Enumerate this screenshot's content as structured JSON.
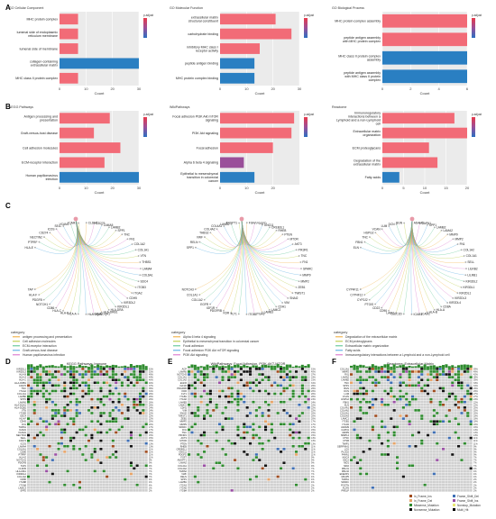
{
  "panels": {
    "A": "A",
    "B": "B",
    "C": "C",
    "D": "D",
    "E": "E",
    "F": "F"
  },
  "chart_data": [
    {
      "type": "bar",
      "panel": "A",
      "title": "GO Cellular Component",
      "xlabel": "Count",
      "xlim": [
        0,
        30
      ],
      "xticks": [
        0,
        10,
        20,
        30
      ],
      "categories": [
        "MHC protein complex",
        "lumenal side of endoplasmic reticulum membrane",
        "lumenal side of membrane",
        "collagen-containing extracellular matrix",
        "MHC class II protein complex"
      ],
      "values": [
        7,
        7,
        7,
        33,
        7
      ],
      "colors": [
        "#f26b77",
        "#f26b77",
        "#f26b77",
        "#2a7fc2",
        "#f26b77"
      ],
      "legend_title": "p.adjust"
    },
    {
      "type": "bar",
      "panel": "A2",
      "title": "GO Molecular Function",
      "xlabel": "Count",
      "xlim": [
        0,
        30
      ],
      "xticks": [
        0,
        10,
        20,
        30
      ],
      "categories": [
        "extracellular matrix structural constituent",
        "carbohydrate binding",
        "inhibitory MHC class I receptor activity",
        "peptide antigen binding",
        "MHC protein complex binding"
      ],
      "values": [
        21,
        27,
        15,
        13,
        13
      ],
      "colors": [
        "#f26b77",
        "#f26b77",
        "#f26b77",
        "#2a7fc2",
        "#2a7fc2"
      ],
      "legend_title": "p.adjust"
    },
    {
      "type": "bar",
      "panel": "A3",
      "title": "GO Biological Process",
      "xlabel": "Count",
      "xlim": [
        0,
        6
      ],
      "xticks": [
        0,
        2,
        4,
        6
      ],
      "categories": [
        "MHC protein complex assembly",
        "peptide antigen assembly with MHC protein complex",
        "MHC class II protein complex assembly",
        "peptide antigen assembly with MHC class II protein complex"
      ],
      "values": [
        6.3,
        6.3,
        6.3,
        6.3
      ],
      "colors": [
        "#f26b77",
        "#f26b77",
        "#2a7fc2",
        "#2a7fc2"
      ],
      "legend_title": "p.adjust"
    },
    {
      "type": "bar",
      "panel": "B",
      "title": "KEGG Pathways",
      "xlabel": "Count",
      "xlim": [
        0,
        30
      ],
      "xticks": [
        0,
        10,
        20,
        30
      ],
      "categories": [
        "Antigen processing and presentation",
        "Graft-versus-host disease",
        "Cell adhesion molecules",
        "ECM-receptor interaction",
        "Human papillomavirus infection"
      ],
      "values": [
        19,
        13,
        23,
        17,
        33
      ],
      "colors": [
        "#f26b77",
        "#f26b77",
        "#f26b77",
        "#f26b77",
        "#2a7fc2"
      ],
      "legend_title": "p.adjust"
    },
    {
      "type": "bar",
      "panel": "B2",
      "title": "WikiPathways",
      "xlabel": "Count",
      "xlim": [
        0,
        30
      ],
      "xticks": [
        0,
        10,
        20
      ],
      "categories": [
        "Focal adhesion PI3K Akt mTOR signaling",
        "PI3K Akt signaling",
        "Focal adhesion",
        "Alpha 6 beta 4 signaling",
        "Epithelial to mesenchymal transition in colorectal cancer"
      ],
      "values": [
        28,
        27,
        20,
        9,
        13
      ],
      "colors": [
        "#f26b77",
        "#f26b77",
        "#f26b77",
        "#9a4f9a",
        "#2a7fc2"
      ],
      "legend_title": "p.adjust"
    },
    {
      "type": "bar",
      "panel": "B3",
      "title": "Reactome",
      "xlabel": "Count",
      "xlim": [
        0,
        20
      ],
      "xticks": [
        0,
        5,
        10,
        15,
        20
      ],
      "categories": [
        "Immunoregulatory interactions between a Lymphoid and a non-Lymphoid cell",
        "Extracellular matrix organization",
        "ECM proteoglycans",
        "Degradation of the extracellular matrix",
        "Fatty acids"
      ],
      "values": [
        17,
        20,
        11,
        13,
        4
      ],
      "colors": [
        "#f26b77",
        "#f26b77",
        "#f26b77",
        "#f26b77",
        "#2a7fc2"
      ],
      "legend_title": "p.adjust"
    }
  ],
  "cnet": {
    "category_label": "category",
    "left": {
      "genes": [
        "TAP",
        "HLA-F",
        "PDGFB",
        "NOTCH1",
        "CD86",
        "HLA-C",
        "HLA-B",
        "HLA-A",
        "HLA-DQB1",
        "HLA-DQA1",
        "HLA-DRB1",
        "HLA-DRA",
        "KIR2DL1",
        "KIR3DL2",
        "CDH5",
        "ITGA2",
        "ITGB3",
        "SDC4",
        "COL6A1",
        "LAMA4",
        "THBS1",
        "VTN",
        "COL1A1",
        "COL1A2",
        "FN1",
        "TNC",
        "SPP1",
        "LAMB2",
        "LAMA5",
        "CD276",
        "CLDN5",
        "ICAM1",
        "VCAM1",
        "SELL",
        "ICOS",
        "CD274",
        "NECTIN2",
        "PTPRF",
        "HLA-E"
      ],
      "legend": [
        "antigen processing and presentation",
        "Cell adhesion molecules",
        "ECM-receptor interaction",
        "Graft-versus-host disease",
        "Human papillomavirus infection"
      ],
      "legend_colors": [
        "#f0a830",
        "#b4c836",
        "#4ec08a",
        "#4aa6e0",
        "#d766c8"
      ]
    },
    "mid": {
      "genes": [
        "NOTCH3",
        "COL1A1",
        "COL1A2",
        "EGFR",
        "IGF1R",
        "PDGFRB",
        "KDR",
        "FLT1",
        "ITGB1",
        "ITGA6",
        "LAMB3",
        "LAMC2",
        "CDH1",
        "VIM",
        "SNAI2",
        "TWIST1",
        "ZEB1",
        "MMP2",
        "MMP9",
        "SPARC",
        "FN1",
        "TNC",
        "PIK3R1",
        "AKT3",
        "MTOR",
        "PTEN",
        "RHEB",
        "CREB3L1",
        "GNG11",
        "PDGFD",
        "FGF7",
        "ANGPT1",
        "LAMA2",
        "COL4A1",
        "COL4A2",
        "THBS2",
        "VWF",
        "RELN",
        "SPP1"
      ],
      "legend": [
        "Alpha 6 beta 4 signaling",
        "Epithelial to mesenchymal transition in colorectal cancer",
        "Focal adhesion",
        "Focal adhesion PI3K Akt mTOR signaling",
        "PI3K Akt signaling"
      ],
      "legend_colors": [
        "#f0a830",
        "#b4c836",
        "#4ec08a",
        "#4aa6e0",
        "#d766c8"
      ]
    },
    "right": {
      "genes": [
        "CYP4F11",
        "CYP4F12",
        "CYP2J2",
        "PTGIS",
        "CD22",
        "CD96",
        "LAIR1",
        "CLEC2D",
        "ICAM1",
        "ICAM2",
        "HLA-B",
        "HLA-A",
        "CD8A",
        "KIR2DL4",
        "KIR2DL3",
        "KIR2DL1",
        "KIR3DL1",
        "KIR3DL2",
        "LILRB1",
        "LILRB2",
        "SELL",
        "COL1A1",
        "COL1A2",
        "FN1",
        "MMP2",
        "MMP9",
        "LAMA2",
        "LAMB2",
        "SPP1",
        "CAPN1",
        "ADAM9",
        "BGN",
        "DCN",
        "LUM",
        "VCAN",
        "HSPG2",
        "TNC",
        "FBN1",
        "ELN"
      ],
      "legend": [
        "Degradation of the extracellular matrix",
        "ECM proteoglycans",
        "Extracellular matrix organization",
        "Fatty acids",
        "Immunoregulatory interactions between a Lymphoid and a non-Lymphoid cell"
      ],
      "legend_colors": [
        "#f0a830",
        "#b4c836",
        "#4ec08a",
        "#4aa6e0",
        "#d766c8"
      ]
    }
  },
  "oncoprints": [
    {
      "title": "KEGG Pathways: Immune",
      "rows": [
        "KIR2DL1",
        "KIR2DL3",
        "HLA-B",
        "HLA-A",
        "HLA-C",
        "HLA-DRB1",
        "CD276",
        "TNC",
        "ITGA2",
        "COL1A1",
        "LAMB2",
        "SPP1",
        "LAMA5",
        "HLA-DQA1",
        "HLA-DQB1",
        "VTN",
        "ITGB3",
        "SDC4",
        "HLA-F",
        "CDH5",
        "FN1",
        "THBS1",
        "ICAM1",
        "VCAM1",
        "NECTIN2",
        "SELL",
        "CD274",
        "ICOS",
        "LAMA4",
        "COL6A1",
        "CD86",
        "PTPRF",
        "HLA-E",
        "NOTCH1",
        "PDGFB",
        "TAP1",
        "CLDN5",
        "HLA-DRA",
        "KIR3DL2",
        "COL1A2",
        "CD80",
        "ITGB8",
        "ITGA8",
        "LAMC3",
        "SPP2"
      ],
      "pct": [
        "61%",
        "51%",
        "49%",
        "44%",
        "40%",
        "40%",
        "37%",
        "35%",
        "31%",
        "29%",
        "29%",
        "29%",
        "26%",
        "26%",
        "24%",
        "24%",
        "22%",
        "22%",
        "22%",
        "20%",
        "20%",
        "17%",
        "17%",
        "15%",
        "15%",
        "15%",
        "15%",
        "13%",
        "13%",
        "11%",
        "11%",
        "11%",
        "11%",
        "9%",
        "9%",
        "9%",
        "7%",
        "7%",
        "7%",
        "7%",
        "4%",
        "4%",
        "4%",
        "2%",
        "2%"
      ]
    },
    {
      "title": "WikiPathways: Focal Adhesion, PI3K-AKT-MTOR",
      "rows": [
        "ACP",
        "LAMA5",
        "NOTCH3",
        "COL1A1",
        "COL1A2",
        "EGFR",
        "IGF1R",
        "PDGFRB",
        "KDR",
        "FLT1",
        "ITGB1",
        "ITGA6",
        "LAMB3",
        "LAMC2",
        "CDH1",
        "VIM",
        "SNAI2",
        "TWIST1",
        "ZEB1",
        "MMP2",
        "MMP9",
        "SPARC",
        "FN1",
        "TNC",
        "PIK3R1",
        "AKT3",
        "MTOR",
        "PTEN",
        "RHEB",
        "CREB3L1",
        "GNG11",
        "PDGFD",
        "FGF7",
        "ANGPT1",
        "LAMA2",
        "COL4A1",
        "COL4A2",
        "THBS2",
        "VWF",
        "RELN",
        "SPP1",
        "LAMB1",
        "ITGA3",
        "ITGA5",
        "ITGB4"
      ],
      "pct": [
        "51%",
        "40%",
        "37%",
        "33%",
        "31%",
        "31%",
        "29%",
        "29%",
        "26%",
        "26%",
        "26%",
        "24%",
        "24%",
        "22%",
        "22%",
        "22%",
        "20%",
        "20%",
        "20%",
        "17%",
        "17%",
        "17%",
        "15%",
        "15%",
        "15%",
        "13%",
        "13%",
        "13%",
        "11%",
        "11%",
        "11%",
        "11%",
        "9%",
        "9%",
        "9%",
        "9%",
        "7%",
        "7%",
        "7%",
        "4%",
        "4%",
        "4%",
        "2%",
        "2%",
        "2%"
      ]
    },
    {
      "title": "Reactome: Extracellular Matrix",
      "rows": [
        "COL1A1",
        "MMP2",
        "FN1",
        "LAMA2",
        "LAMB2",
        "TNC",
        "SPP1",
        "BGN",
        "DCN",
        "LUM",
        "VCAN",
        "HSPG2",
        "FBN1",
        "ELN",
        "COL4A1",
        "COL4A2",
        "COL5A1",
        "COL6A3",
        "LAMC1",
        "ITGB1",
        "ITGA5",
        "ADAM9",
        "CAPN1",
        "MMP9",
        "MMP14",
        "CTSK",
        "CTSB",
        "TIMP1",
        "SERPINH1",
        "LOX",
        "PLOD2",
        "P4HA1",
        "MUC4",
        "SDC2",
        "NID1",
        "NID2",
        "FBLN1",
        "FBLN2",
        "EFEMP1",
        "MFAP5",
        "THBS1",
        "SPARC",
        "POSTN",
        "ACAN",
        "PRELP"
      ],
      "pct": [
        "59%",
        "49%",
        "42%",
        "38%",
        "35%",
        "33%",
        "31%",
        "29%",
        "29%",
        "27%",
        "27%",
        "24%",
        "22%",
        "22%",
        "20%",
        "20%",
        "20%",
        "18%",
        "18%",
        "18%",
        "16%",
        "16%",
        "13%",
        "13%",
        "13%",
        "11%",
        "11%",
        "11%",
        "9%",
        "9%",
        "9%",
        "9%",
        "7%",
        "7%",
        "7%",
        "7%",
        "4%",
        "4%",
        "4%",
        "4%",
        "2%",
        "2%",
        "2%",
        "2%",
        "2%"
      ]
    }
  ],
  "onco_legend": [
    "In_Frame_Ins",
    "In_Frame_Del",
    "Missense_Mutation",
    "Nonsense_Mutation",
    "Frame_Shift_Del",
    "Frame_Shift_Ins",
    "Nonstop_Mutation",
    "Multi_Hit"
  ],
  "onco_legend_colors": [
    "#a04b1e",
    "#e8a468",
    "#2e8b2e",
    "#111111",
    "#3e6fb5",
    "#9b4fa5",
    "#e8e872",
    "#000000"
  ]
}
